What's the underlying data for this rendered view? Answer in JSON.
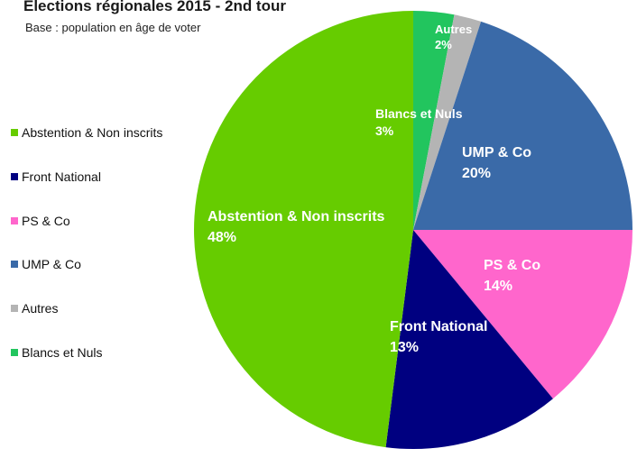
{
  "chart_data": {
    "type": "pie",
    "title": "Elections régionales 2015 - 2nd tour",
    "subtitle": "Base : population en âge de voter",
    "legend_position": "left",
    "slices": [
      {
        "name": "Blancs et Nuls",
        "value": 3,
        "label": "3%",
        "color": "#22c55e"
      },
      {
        "name": "Autres",
        "value": 2,
        "label": "2%",
        "color": "#b4b4b4"
      },
      {
        "name": "UMP & Co",
        "value": 20,
        "label": "20%",
        "color": "#3a6aa8"
      },
      {
        "name": "PS & Co",
        "value": 14,
        "label": "14%",
        "color": "#ff66cc"
      },
      {
        "name": "Front National",
        "value": 13,
        "label": "13%",
        "color": "#000080"
      },
      {
        "name": "Abstention & Non inscrits",
        "value": 48,
        "label": "48%",
        "color": "#66cc00"
      }
    ],
    "legend": [
      {
        "name": "Abstention & Non inscrits",
        "color": "#66cc00"
      },
      {
        "name": "Front National",
        "color": "#000080"
      },
      {
        "name": "PS & Co",
        "color": "#ff66cc"
      },
      {
        "name": "UMP & Co",
        "color": "#3a6aa8"
      },
      {
        "name": "Autres",
        "color": "#b4b4b4"
      },
      {
        "name": "Blancs et Nuls",
        "color": "#22c55e"
      }
    ]
  }
}
